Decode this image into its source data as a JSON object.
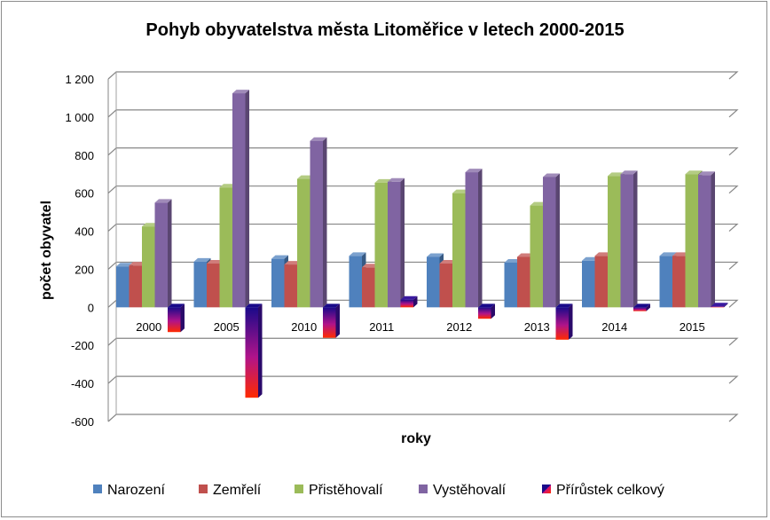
{
  "chart_data": {
    "type": "bar",
    "title": "Pohyb obyvatelstva města Litoměřice v letech 2000-2015",
    "xlabel": "roky",
    "ylabel": "počet obyvatel",
    "ylim": [
      -600,
      1200
    ],
    "yticks": [
      1200,
      1000,
      800,
      600,
      400,
      200,
      0,
      -200,
      -400,
      -600
    ],
    "ytick_labels": [
      "1 200",
      "1 000",
      "800",
      "600",
      "400",
      "200",
      "0",
      "-200",
      "-400",
      "-600"
    ],
    "categories": [
      "2000",
      "2005",
      "2010",
      "2011",
      "2012",
      "2013",
      "2014",
      "2015"
    ],
    "grid": true,
    "legend_position": "bottom",
    "series": [
      {
        "name": "Narození",
        "color": "#4f81bd",
        "values": [
          215,
          240,
          255,
          270,
          265,
          235,
          245,
          270
        ]
      },
      {
        "name": "Zemřelí",
        "color": "#c0504d",
        "values": [
          220,
          230,
          225,
          210,
          230,
          265,
          270,
          270
        ]
      },
      {
        "name": "Přistěhovalí",
        "color": "#9bbb59",
        "values": [
          425,
          630,
          675,
          655,
          600,
          535,
          690,
          700
        ]
      },
      {
        "name": "Vystěhovalí",
        "color": "#8064a2",
        "values": [
          550,
          1125,
          875,
          660,
          710,
          685,
          700,
          695
        ]
      },
      {
        "name": "Přírůstek celkový",
        "color": "#1f1a8c",
        "values": [
          -130,
          -475,
          -160,
          40,
          -60,
          -170,
          -20,
          5
        ]
      }
    ]
  }
}
